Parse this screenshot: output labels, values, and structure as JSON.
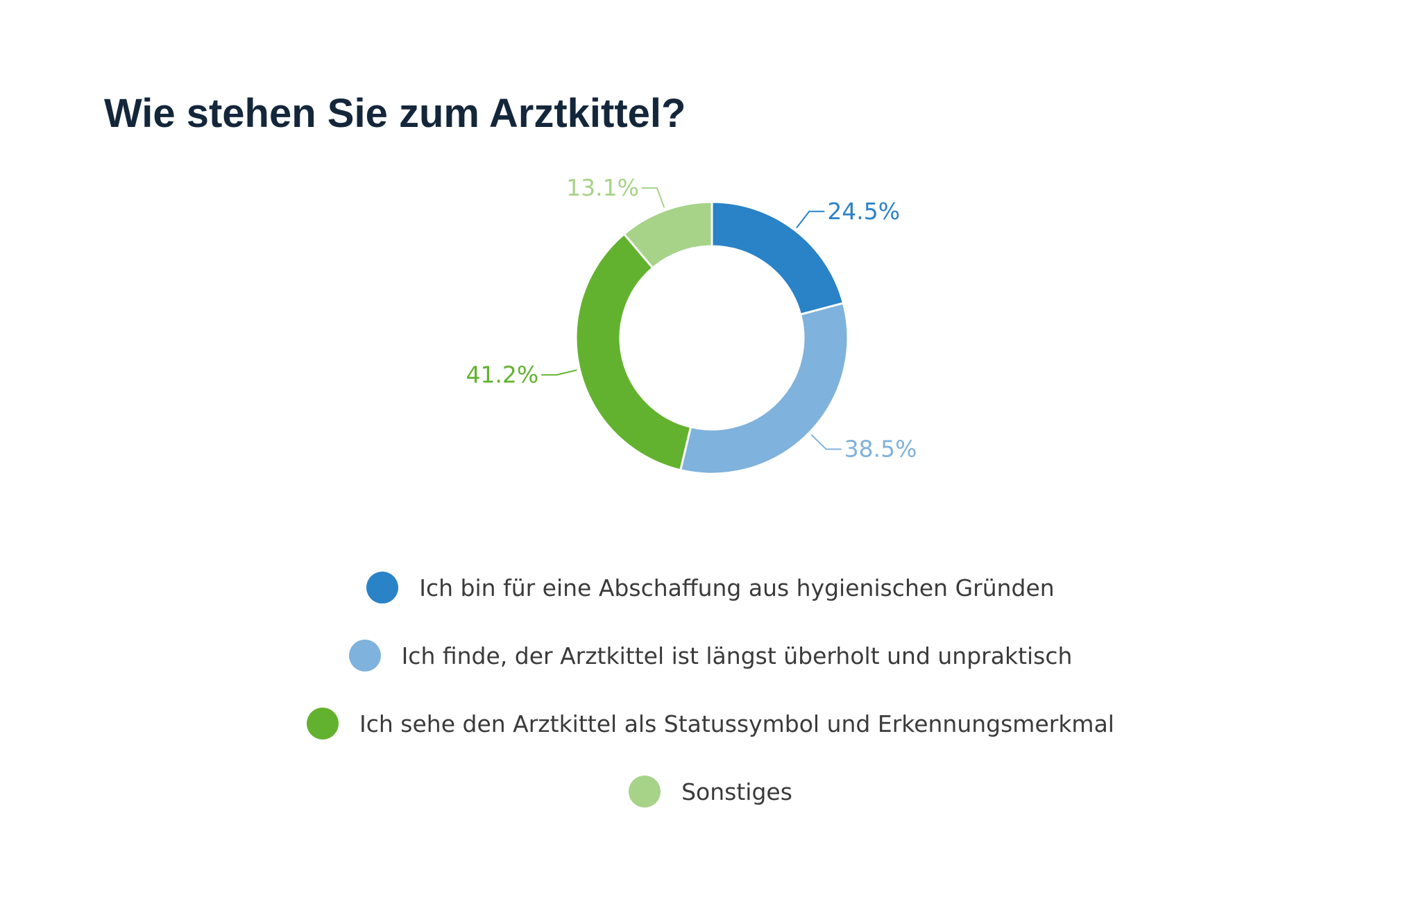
{
  "chart_data": {
    "type": "pie",
    "variant": "donut",
    "title": "Wie stehen Sie zum Arztkittel?",
    "series": [
      {
        "name": "Ich bin für eine Abschaffung aus hygienischen Gründen",
        "value": 24.5,
        "label": "24.5%",
        "color": "#2a82c7"
      },
      {
        "name": "Ich finde, der Arztkittel ist längst überholt und unpraktisch",
        "value": 38.5,
        "label": "38.5%",
        "color": "#7fb2dc"
      },
      {
        "name": "Ich sehe den Arztkittel als Statussymbol und Erkennungsmerkmal",
        "value": 41.2,
        "label": "41.2%",
        "color": "#63b22f"
      },
      {
        "name": "Sonstiges",
        "value": 13.1,
        "label": "13.1%",
        "color": "#a6d388"
      }
    ],
    "legend_position": "bottom",
    "grid": false
  }
}
